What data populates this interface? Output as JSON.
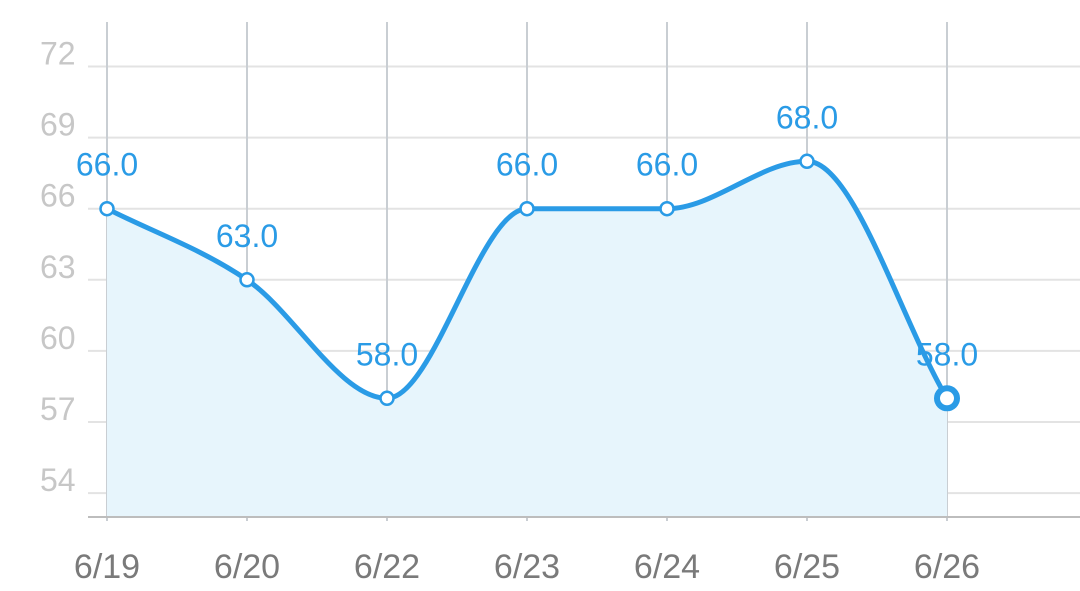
{
  "chart_data": {
    "type": "line",
    "categories": [
      "6/19",
      "6/20",
      "6/22",
      "6/23",
      "6/24",
      "6/25",
      "6/26"
    ],
    "values": [
      66.0,
      63.0,
      58.0,
      66.0,
      66.0,
      68.0,
      58.0
    ],
    "data_labels": [
      "66.0",
      "63.0",
      "58.0",
      "66.0",
      "66.0",
      "68.0",
      "58.0"
    ],
    "y_ticks": [
      "54",
      "57",
      "60",
      "63",
      "66",
      "69",
      "72"
    ],
    "ylim": [
      53,
      73
    ],
    "grid": true,
    "smooth": true,
    "filled_area": true,
    "selected_index": 6,
    "colors": {
      "line": "#2a9be6",
      "area": "#e7f5fc",
      "grid": "#e3e3e3",
      "y_tick_text": "#c7c7c7",
      "x_tick_text": "#7a7a7a"
    }
  }
}
